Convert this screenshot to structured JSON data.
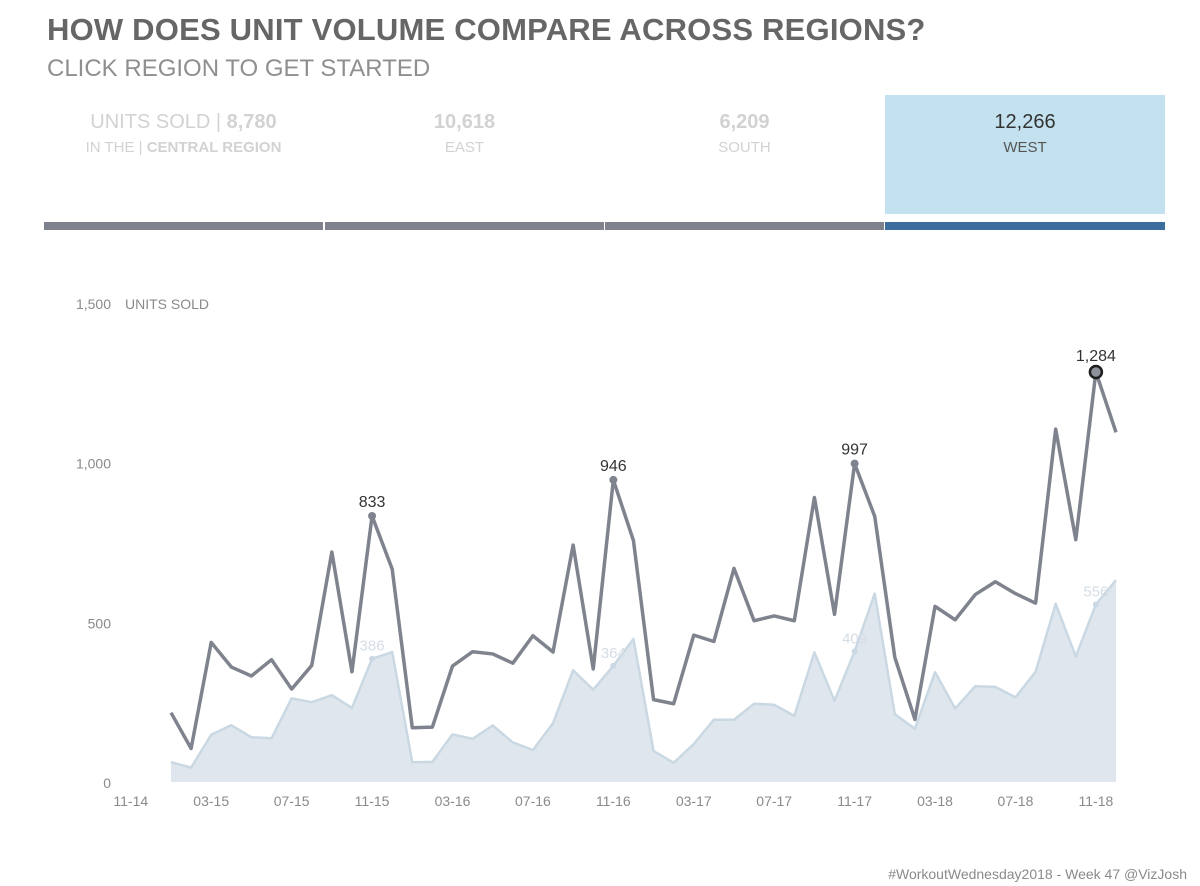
{
  "header": {
    "title": "HOW DOES UNIT VOLUME COMPARE ACROSS REGIONS?",
    "subtitle": "CLICK REGION TO GET STARTED"
  },
  "kpis": [
    {
      "label_prefix": "UNITS SOLD | ",
      "value": "8,780",
      "sub_prefix": "IN THE | ",
      "region": "CENTRAL REGION",
      "selected": false
    },
    {
      "label_prefix": "",
      "value": "10,618",
      "sub_prefix": "",
      "region": "EAST",
      "selected": false
    },
    {
      "label_prefix": "",
      "value": "6,209",
      "sub_prefix": "",
      "region": "SOUTH",
      "selected": false
    },
    {
      "label_prefix": "",
      "value": "12,266",
      "sub_prefix": "",
      "region": "WEST",
      "selected": true
    }
  ],
  "colors": {
    "selected_bg": "#c3e1ee",
    "selected_bar": "#3b6e9e",
    "unselected_bar": "#7f828c",
    "total_line": "#7f838e",
    "region_area": "#dfe6ee",
    "region_line": "#cad8e3",
    "text_muted": "#d2d2d2"
  },
  "footer": "#WorkoutWednesday2018 - Week 47  @VizJosh",
  "chart_data": {
    "type": "area",
    "ylabel": "UNITS SOLD",
    "ylim": [
      0,
      1500
    ],
    "yticks": [
      0,
      500,
      1000,
      1500
    ],
    "ytick_labels": [
      "0",
      "500",
      "1,000",
      "1,500"
    ],
    "xtick_labels": [
      "11-14",
      "03-15",
      "07-15",
      "11-15",
      "03-16",
      "07-16",
      "11-16",
      "03-17",
      "07-17",
      "11-17",
      "03-18",
      "07-18",
      "11-18"
    ],
    "grid": false,
    "x": [
      "01-15",
      "02-15",
      "03-15",
      "04-15",
      "05-15",
      "06-15",
      "07-15",
      "08-15",
      "09-15",
      "10-15",
      "11-15",
      "12-15",
      "01-16",
      "02-16",
      "03-16",
      "04-16",
      "05-16",
      "06-16",
      "07-16",
      "08-16",
      "09-16",
      "10-16",
      "11-16",
      "12-16",
      "01-17",
      "02-17",
      "03-17",
      "04-17",
      "05-17",
      "06-17",
      "07-17",
      "08-17",
      "09-17",
      "10-17",
      "11-17",
      "12-17",
      "01-18",
      "02-18",
      "03-18",
      "04-18",
      "05-18",
      "06-18",
      "07-18",
      "08-18",
      "09-18",
      "10-18",
      "11-18",
      "12-18"
    ],
    "series": [
      {
        "values": [
          217,
          105,
          437,
          360,
          332,
          383,
          291,
          365,
          720,
          345,
          833,
          667,
          170,
          172,
          363,
          408,
          401,
          372,
          458,
          407,
          742,
          354,
          946,
          756,
          258,
          245,
          460,
          440,
          669,
          505,
          520,
          505,
          891,
          525,
          997,
          832,
          390,
          196,
          550,
          508,
          587,
          627,
          590,
          560,
          1105,
          759,
          1284,
          1095
        ],
        "labels": [
          {
            "x": "11-15",
            "text": "833"
          },
          {
            "x": "11-16",
            "text": "946"
          },
          {
            "x": "11-17",
            "text": "997"
          },
          {
            "x": "11-18",
            "text": "1,284"
          }
        ]
      },
      {
        "values": [
          62,
          45,
          148,
          178,
          140,
          137,
          262,
          250,
          272,
          232,
          386,
          407,
          62,
          63,
          149,
          135,
          177,
          124,
          100,
          184,
          350,
          289,
          364,
          448,
          97,
          60,
          119,
          195,
          195,
          245,
          242,
          207,
          406,
          254,
          409,
          590,
          212,
          167,
          344,
          230,
          300,
          298,
          265,
          345,
          558,
          393,
          556,
          632
        ],
        "labels": [
          {
            "x": "11-15",
            "text": "386"
          },
          {
            "x": "11-16",
            "text": "364"
          },
          {
            "x": "11-17",
            "text": "409"
          },
          {
            "x": "11-18",
            "text": "556"
          }
        ]
      }
    ]
  }
}
